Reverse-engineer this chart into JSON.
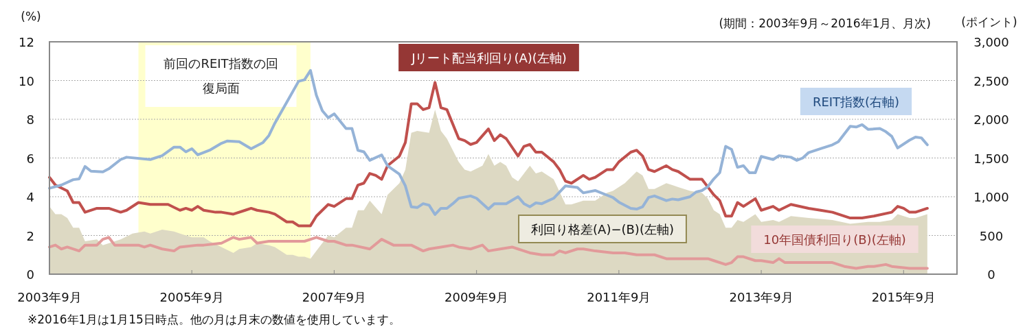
{
  "chart_data": {
    "type": "line",
    "ylabel": "(%)",
    "y2label": "(ポイント)",
    "annotations": [
      "(期間：2003年9月～2016年1月、月次)",
      "※2016年1月は1月15日時点。他の月は月末の数値を使用しています。"
    ],
    "xlim": [
      "2003-09",
      "2016-06"
    ],
    "xticks": [
      {
        "value": "2003-09",
        "label": "2003年9月"
      },
      {
        "value": "2005-09",
        "label": "2005年9月"
      },
      {
        "value": "2007-09",
        "label": "2007年9月"
      },
      {
        "value": "2009-09",
        "label": "2009年9月"
      },
      {
        "value": "2011-09",
        "label": "2011年9月"
      },
      {
        "value": "2013-09",
        "label": "2013年9月"
      },
      {
        "value": "2015-09",
        "label": "2015年9月"
      }
    ],
    "ylim": [
      0,
      12
    ],
    "yticks": [
      0,
      2,
      4,
      6,
      8,
      10,
      12
    ],
    "y2lim": [
      0,
      3000
    ],
    "y2ticks": [
      0,
      500,
      {
        "value": 1000,
        "label": "1,000"
      },
      {
        "value": 1500,
        "label": "1,500"
      },
      {
        "value": 2000,
        "label": "2,000"
      },
      {
        "value": 2500,
        "label": "2,500"
      },
      {
        "value": 3000,
        "label": "3,000"
      }
    ],
    "grid": "y",
    "bands": [
      {
        "axis": "x",
        "from": "2004-12",
        "to": "2007-05",
        "label": "前回のREIT指数の回復局面",
        "color": "#ffffcc"
      }
    ],
    "series": [
      {
        "name": "利回り格差(A)−(B)(左軸)",
        "type": "area",
        "color": "#ddd9c3",
        "x": [
          "2003-09",
          "2003-10",
          "2003-11",
          "2003-12",
          "2004-01",
          "2004-02",
          "2004-03",
          "2004-05",
          "2004-06",
          "2004-09",
          "2004-11",
          "2005-01",
          "2005-02",
          "2005-04",
          "2005-06",
          "2005-07",
          "2005-09",
          "2005-11",
          "2005-12",
          "2006-02",
          "2006-04",
          "2006-05",
          "2006-07",
          "2006-08",
          "2006-10",
          "2006-11",
          "2007-01",
          "2007-02",
          "2007-03",
          "2007-04",
          "2007-05",
          "2007-06",
          "2007-08",
          "2007-09",
          "2007-11",
          "2007-12",
          "2008-01",
          "2008-02",
          "2008-03",
          "2008-05",
          "2008-06",
          "2008-08",
          "2008-09",
          "2008-10",
          "2008-11",
          "2009-01",
          "2009-02",
          "2009-03",
          "2009-04",
          "2009-06",
          "2009-07",
          "2009-08",
          "2009-10",
          "2009-11",
          "2009-12",
          "2010-01",
          "2010-02",
          "2010-03",
          "2010-04",
          "2010-06",
          "2010-07",
          "2010-08",
          "2010-10",
          "2010-12",
          "2011-01",
          "2011-03",
          "2011-04",
          "2011-05",
          "2011-07",
          "2011-08",
          "2011-10",
          "2011-12",
          "2012-01",
          "2012-02",
          "2012-03",
          "2012-05",
          "2012-06",
          "2012-07",
          "2012-09",
          "2012-11",
          "2012-12",
          "2013-01",
          "2013-02",
          "2013-03",
          "2013-04",
          "2013-05",
          "2013-06",
          "2013-08",
          "2013-09",
          "2013-11",
          "2013-12",
          "2014-02",
          "2014-05",
          "2014-09",
          "2014-12",
          "2015-03",
          "2015-05",
          "2015-07",
          "2015-08",
          "2015-10",
          "2015-11",
          "2016-01"
        ],
        "values": [
          3.5,
          3.1,
          3.1,
          2.9,
          2.4,
          2.4,
          1.7,
          1.8,
          1.5,
          1.8,
          2.1,
          2.2,
          2.1,
          2.3,
          2.2,
          2.1,
          1.9,
          1.9,
          1.7,
          1.4,
          1.1,
          1.3,
          1.4,
          1.6,
          1.5,
          1.4,
          1.0,
          1.0,
          0.9,
          0.9,
          0.8,
          1.2,
          2.0,
          1.9,
          2.4,
          2.4,
          3.3,
          3.3,
          3.8,
          3.1,
          4.1,
          4.7,
          5.4,
          7.3,
          7.4,
          7.3,
          8.5,
          7.4,
          7.0,
          5.8,
          5.4,
          5.3,
          5.6,
          6.2,
          5.6,
          5.8,
          5.6,
          5.0,
          4.8,
          5.6,
          5.2,
          5.3,
          4.9,
          3.6,
          3.6,
          3.8,
          3.8,
          3.8,
          4.2,
          4.3,
          4.7,
          5.3,
          5.1,
          4.4,
          4.4,
          4.7,
          4.6,
          4.5,
          4.3,
          4.2,
          3.9,
          3.3,
          3.1,
          2.4,
          2.4,
          2.8,
          2.7,
          3.1,
          2.7,
          2.8,
          2.7,
          3.0,
          2.9,
          2.8,
          2.6,
          2.7,
          2.7,
          2.8,
          3.1,
          2.9,
          2.9,
          3.1
        ]
      },
      {
        "name": "Jリート配当利回り(A)(左軸)",
        "color": "#c0504d",
        "x": [
          "2003-09",
          "2003-10",
          "2003-12",
          "2004-01",
          "2004-02",
          "2004-03",
          "2004-05",
          "2004-06",
          "2004-07",
          "2004-09",
          "2004-10",
          "2004-12",
          "2005-02",
          "2005-05",
          "2005-07",
          "2005-08",
          "2005-09",
          "2005-10",
          "2005-11",
          "2006-01",
          "2006-02",
          "2006-04",
          "2006-06",
          "2006-07",
          "2006-08",
          "2006-10",
          "2006-11",
          "2007-01",
          "2007-02",
          "2007-03",
          "2007-04",
          "2007-05",
          "2007-06",
          "2007-08",
          "2007-09",
          "2007-11",
          "2007-12",
          "2008-01",
          "2008-02",
          "2008-03",
          "2008-04",
          "2008-05",
          "2008-06",
          "2008-08",
          "2008-09",
          "2008-10",
          "2008-11",
          "2008-12",
          "2009-01",
          "2009-02",
          "2009-03",
          "2009-04",
          "2009-06",
          "2009-07",
          "2009-08",
          "2009-09",
          "2009-11",
          "2009-12",
          "2010-01",
          "2010-02",
          "2010-04",
          "2010-05",
          "2010-06",
          "2010-07",
          "2010-08",
          "2010-10",
          "2010-11",
          "2010-12",
          "2011-01",
          "2011-03",
          "2011-04",
          "2011-05",
          "2011-07",
          "2011-08",
          "2011-09",
          "2011-11",
          "2011-12",
          "2012-01",
          "2012-02",
          "2012-03",
          "2012-05",
          "2012-06",
          "2012-07",
          "2012-09",
          "2012-10",
          "2012-11",
          "2012-12",
          "2013-01",
          "2013-02",
          "2013-03",
          "2013-04",
          "2013-05",
          "2013-06",
          "2013-08",
          "2013-09",
          "2013-11",
          "2013-12",
          "2014-02",
          "2014-05",
          "2014-07",
          "2014-09",
          "2014-12",
          "2015-02",
          "2015-04",
          "2015-07",
          "2015-08",
          "2015-09",
          "2015-10",
          "2015-11",
          "2016-01"
        ],
        "values": [
          5.0,
          4.6,
          4.3,
          3.7,
          3.7,
          3.2,
          3.4,
          3.4,
          3.4,
          3.2,
          3.3,
          3.7,
          3.6,
          3.6,
          3.3,
          3.4,
          3.3,
          3.5,
          3.3,
          3.2,
          3.2,
          3.1,
          3.3,
          3.4,
          3.3,
          3.2,
          3.1,
          2.7,
          2.7,
          2.5,
          2.5,
          2.5,
          3.0,
          3.6,
          3.5,
          3.9,
          3.9,
          4.6,
          4.7,
          5.2,
          5.1,
          4.9,
          5.6,
          6.1,
          6.8,
          8.8,
          8.8,
          8.5,
          8.6,
          9.9,
          8.6,
          8.5,
          7.0,
          6.9,
          6.7,
          6.8,
          7.5,
          6.9,
          7.2,
          7.0,
          6.1,
          6.6,
          6.7,
          6.3,
          6.3,
          5.8,
          5.4,
          4.8,
          4.7,
          5.1,
          4.9,
          5.0,
          5.4,
          5.4,
          5.8,
          6.3,
          6.4,
          6.1,
          5.4,
          5.3,
          5.6,
          5.4,
          5.3,
          4.9,
          4.9,
          4.9,
          4.5,
          4.1,
          3.8,
          3.0,
          3.0,
          3.7,
          3.5,
          3.9,
          3.3,
          3.5,
          3.3,
          3.6,
          3.4,
          3.3,
          3.2,
          2.9,
          2.9,
          3.0,
          3.2,
          3.5,
          3.4,
          3.2,
          3.2,
          3.4
        ]
      },
      {
        "name": "10年国債利回り(B)(左軸)",
        "color": "#e29a9a",
        "x": [
          "2003-09",
          "2003-10",
          "2003-11",
          "2003-12",
          "2004-02",
          "2004-03",
          "2004-05",
          "2004-06",
          "2004-07",
          "2004-08",
          "2004-09",
          "2004-10",
          "2004-12",
          "2005-01",
          "2005-02",
          "2005-04",
          "2005-06",
          "2005-07",
          "2005-10",
          "2005-11",
          "2006-02",
          "2006-04",
          "2006-05",
          "2006-07",
          "2006-08",
          "2006-10",
          "2006-11",
          "2007-01",
          "2007-04",
          "2007-06",
          "2007-08",
          "2007-09",
          "2007-11",
          "2007-12",
          "2008-03",
          "2008-05",
          "2008-07",
          "2008-08",
          "2008-10",
          "2008-12",
          "2009-01",
          "2009-03",
          "2009-05",
          "2009-06",
          "2009-08",
          "2009-10",
          "2009-11",
          "2010-01",
          "2010-03",
          "2010-04",
          "2010-06",
          "2010-08",
          "2010-10",
          "2010-11",
          "2010-12",
          "2011-02",
          "2011-03",
          "2011-05",
          "2011-08",
          "2011-10",
          "2011-12",
          "2012-03",
          "2012-05",
          "2012-07",
          "2012-09",
          "2012-10",
          "2012-12",
          "2013-01",
          "2013-03",
          "2013-04",
          "2013-05",
          "2013-06",
          "2013-08",
          "2013-09",
          "2013-11",
          "2013-12",
          "2014-01",
          "2014-04",
          "2014-06",
          "2014-09",
          "2014-11",
          "2015-01",
          "2015-03",
          "2015-04",
          "2015-06",
          "2015-07",
          "2015-10",
          "2015-11",
          "2016-01"
        ],
        "values": [
          1.4,
          1.5,
          1.3,
          1.4,
          1.2,
          1.5,
          1.5,
          1.8,
          1.9,
          1.5,
          1.5,
          1.5,
          1.5,
          1.4,
          1.5,
          1.3,
          1.2,
          1.4,
          1.5,
          1.5,
          1.6,
          1.9,
          1.8,
          1.9,
          1.6,
          1.7,
          1.7,
          1.7,
          1.7,
          1.9,
          1.7,
          1.7,
          1.5,
          1.5,
          1.3,
          1.8,
          1.5,
          1.5,
          1.5,
          1.2,
          1.3,
          1.4,
          1.5,
          1.4,
          1.3,
          1.5,
          1.2,
          1.3,
          1.4,
          1.3,
          1.1,
          1.0,
          1.0,
          1.2,
          1.1,
          1.3,
          1.3,
          1.2,
          1.1,
          1.1,
          1.0,
          1.0,
          0.8,
          0.8,
          0.8,
          0.8,
          0.8,
          0.7,
          0.5,
          0.6,
          0.9,
          0.9,
          0.7,
          0.7,
          0.6,
          0.8,
          0.6,
          0.6,
          0.6,
          0.6,
          0.4,
          0.3,
          0.4,
          0.4,
          0.5,
          0.4,
          0.3,
          0.3,
          0.3
        ]
      },
      {
        "name": "REIT指数(右軸)",
        "axis": "y2",
        "color": "#95b3d7",
        "x": [
          "2003-09",
          "2003-11",
          "2004-01",
          "2004-02",
          "2004-03",
          "2004-04",
          "2004-06",
          "2004-07",
          "2004-09",
          "2004-10",
          "2005-02",
          "2005-04",
          "2005-06",
          "2005-07",
          "2005-08",
          "2005-09",
          "2005-10",
          "2005-12",
          "2006-02",
          "2006-03",
          "2006-05",
          "2006-07",
          "2006-09",
          "2006-10",
          "2006-11",
          "2007-01",
          "2007-03",
          "2007-04",
          "2007-05",
          "2007-06",
          "2007-07",
          "2007-08",
          "2007-09",
          "2007-11",
          "2007-12",
          "2008-01",
          "2008-02",
          "2008-03",
          "2008-05",
          "2008-06",
          "2008-08",
          "2008-09",
          "2008-10",
          "2008-11",
          "2008-12",
          "2009-01",
          "2009-02",
          "2009-03",
          "2009-04",
          "2009-05",
          "2009-06",
          "2009-08",
          "2009-09",
          "2009-11",
          "2009-12",
          "2010-02",
          "2010-04",
          "2010-05",
          "2010-06",
          "2010-07",
          "2010-08",
          "2010-10",
          "2010-12",
          "2011-02",
          "2011-03",
          "2011-05",
          "2011-07",
          "2011-08",
          "2011-09",
          "2011-11",
          "2011-12",
          "2012-01",
          "2012-02",
          "2012-03",
          "2012-05",
          "2012-06",
          "2012-07",
          "2012-09",
          "2012-10",
          "2012-11",
          "2012-12",
          "2013-01",
          "2013-02",
          "2013-03",
          "2013-04",
          "2013-05",
          "2013-06",
          "2013-07",
          "2013-08",
          "2013-09",
          "2013-11",
          "2013-12",
          "2014-02",
          "2014-03",
          "2014-04",
          "2014-05",
          "2014-07",
          "2014-09",
          "2014-10",
          "2014-12",
          "2015-01",
          "2015-02",
          "2015-03",
          "2015-05",
          "2015-06",
          "2015-07",
          "2015-08",
          "2015-10",
          "2015-11",
          "2015-12",
          "2016-01"
        ],
        "values": [
          1110,
          1150,
          1220,
          1230,
          1390,
          1330,
          1320,
          1360,
          1480,
          1510,
          1480,
          1530,
          1640,
          1640,
          1580,
          1620,
          1540,
          1600,
          1690,
          1720,
          1710,
          1620,
          1700,
          1790,
          1950,
          2220,
          2490,
          2510,
          2630,
          2310,
          2110,
          2020,
          2070,
          1880,
          1880,
          1600,
          1580,
          1470,
          1540,
          1400,
          1290,
          1140,
          870,
          860,
          910,
          890,
          770,
          850,
          850,
          910,
          980,
          1010,
          980,
          840,
          910,
          910,
          1000,
          910,
          870,
          920,
          910,
          980,
          1140,
          1120,
          1050,
          1080,
          1020,
          990,
          930,
          850,
          840,
          870,
          990,
          1010,
          950,
          970,
          960,
          1000,
          1060,
          1080,
          1130,
          1230,
          1310,
          1650,
          1610,
          1380,
          1400,
          1310,
          1310,
          1520,
          1480,
          1530,
          1510,
          1470,
          1500,
          1570,
          1620,
          1670,
          1710,
          1910,
          1900,
          1930,
          1870,
          1880,
          1840,
          1780,
          1630,
          1730,
          1770,
          1760,
          1670
        ]
      }
    ]
  }
}
